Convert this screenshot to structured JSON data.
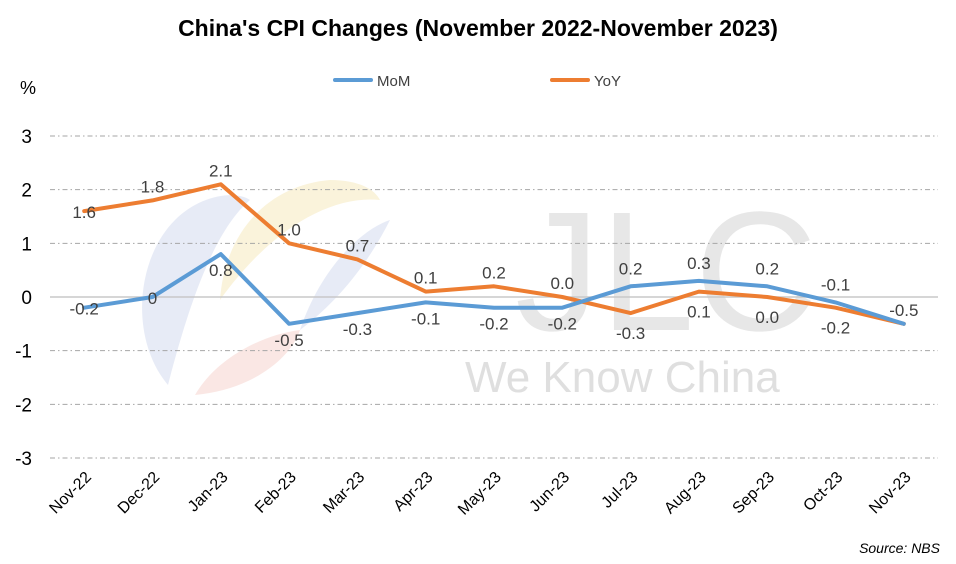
{
  "chart_data": {
    "type": "line",
    "title": "China's CPI Changes (November 2022-November 2023)",
    "ylabel": "%",
    "ylim": [
      -3,
      3
    ],
    "yticks": [
      3,
      2,
      1,
      0,
      -1,
      -2,
      -3
    ],
    "categories": [
      "Nov-22",
      "Dec-22",
      "Jan-23",
      "Feb-23",
      "Mar-23",
      "Apr-23",
      "May-23",
      "Jun-23",
      "Jul-23",
      "Aug-23",
      "Sep-23",
      "Oct-23",
      "Nov-23"
    ],
    "series": [
      {
        "name": "MoM",
        "color": "#5b9bd5",
        "values": [
          -0.2,
          0,
          0.8,
          -0.5,
          -0.3,
          -0.1,
          -0.2,
          -0.2,
          0.2,
          0.3,
          0.2,
          -0.1,
          -0.5
        ],
        "labels": [
          "-0.2",
          "0",
          "0.8",
          "-0.5",
          "-0.3",
          "-0.1",
          "-0.2",
          "-0.2",
          "0.2",
          "0.3",
          "0.2",
          "-0.1",
          ""
        ]
      },
      {
        "name": "YoY",
        "color": "#ed7d31",
        "values": [
          1.6,
          1.8,
          2.1,
          1.0,
          0.7,
          0.1,
          0.2,
          0.0,
          -0.3,
          0.1,
          0.0,
          -0.2,
          -0.5
        ],
        "labels": [
          "1.6",
          "1.8",
          "2.1",
          "1.0",
          "0.7",
          "0.1",
          "0.2",
          "0.0",
          "-0.3",
          "0.1",
          "0.0",
          "-0.2",
          "-0.5"
        ]
      }
    ],
    "grid": true,
    "legend": "top-center",
    "source": "Source: NBS",
    "watermark": {
      "main": "JLC",
      "sub": "We Know China"
    }
  }
}
